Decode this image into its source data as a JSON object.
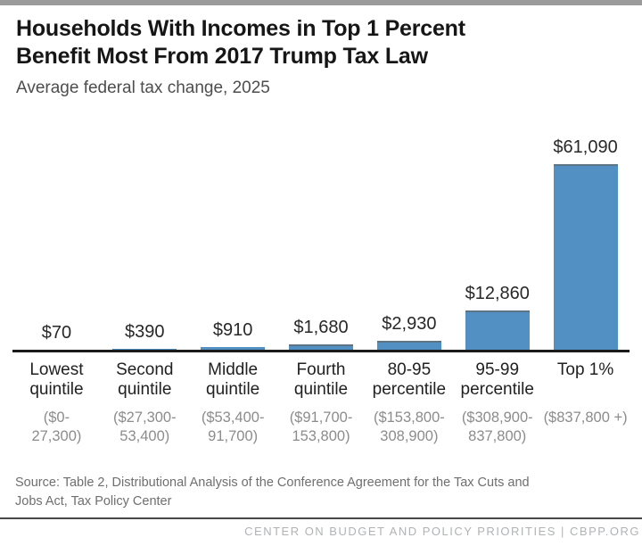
{
  "header": {
    "title_lines": [
      "Households With Incomes in Top 1 Percent",
      "Benefit Most From 2017 Trump Tax Law"
    ],
    "subtitle": "Average federal tax change, 2025"
  },
  "chart_data": {
    "type": "bar",
    "title": "Households With Incomes in Top 1 Percent Benefit Most From 2017 Trump Tax Law",
    "subtitle": "Average federal tax change, 2025",
    "xlabel": "",
    "ylabel": "",
    "ylim": [
      0,
      61090
    ],
    "grid": false,
    "legend": false,
    "bar_color": "#5290c3",
    "bar_top_edge_color": "#5c7484",
    "axis_color": "#1a1a1a",
    "categories": [
      "Lowest quintile",
      "Second quintile",
      "Middle quintile",
      "Fourth quintile",
      "80-95 percentile",
      "95-99 percentile",
      "Top 1%"
    ],
    "category_lines": [
      [
        "Lowest",
        "quintile"
      ],
      [
        "Second",
        "quintile"
      ],
      [
        "Middle",
        "quintile"
      ],
      [
        "Fourth",
        "quintile"
      ],
      [
        "80-95",
        "percentile"
      ],
      [
        "95-99",
        "percentile"
      ],
      [
        "Top 1%"
      ]
    ],
    "income_ranges": [
      "($0-27,300)",
      "($27,300-53,400)",
      "($53,400-91,700)",
      "($91,700-153,800)",
      "($153,800-308,900)",
      "($308,900-837,800)",
      "($837,800 +)"
    ],
    "range_lines": [
      [
        "($0-",
        "27,300)"
      ],
      [
        "($27,300-",
        "53,400)"
      ],
      [
        "($53,400-",
        "91,700)"
      ],
      [
        "($91,700-",
        "153,800)"
      ],
      [
        "($153,800-",
        "308,900)"
      ],
      [
        "($308,900-",
        "837,800)"
      ],
      [
        "($837,800 +)"
      ]
    ],
    "values": [
      70,
      390,
      910,
      1680,
      2930,
      12860,
      61090
    ],
    "value_labels": [
      "$70",
      "$390",
      "$910",
      "$1,680",
      "$2,930",
      "$12,860",
      "$61,090"
    ]
  },
  "footer": {
    "source_lines": [
      "Source: Table 2, Distributional Analysis of the Conference Agreement for the Tax Cuts and",
      "Jobs Act, Tax Policy Center"
    ],
    "org_line": "CENTER ON BUDGET AND POLICY PRIORITIES | CBPP.ORG"
  },
  "colors": {
    "top_strip": "#9b9b9b",
    "divider": "#474747"
  }
}
